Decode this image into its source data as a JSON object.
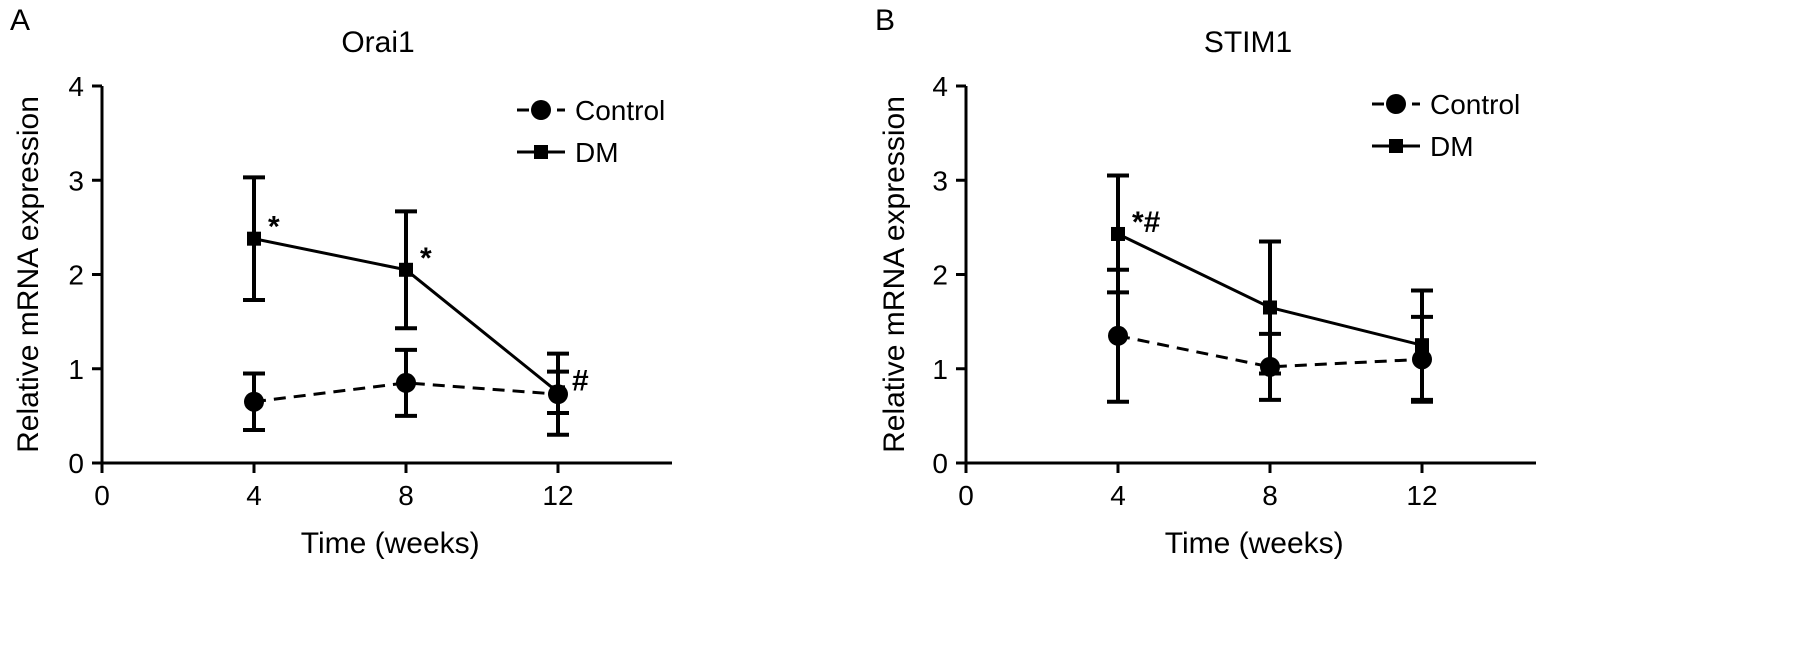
{
  "chart_data": [
    {
      "type": "line",
      "panel_label": "A",
      "title": "Orai1",
      "xlabel": "Time (weeks)",
      "ylabel": "Relative mRNA expression",
      "xlim": [
        0,
        15
      ],
      "ylim": [
        0,
        4
      ],
      "xticks": [
        0,
        4,
        8,
        12
      ],
      "yticks": [
        0,
        1,
        2,
        3,
        4
      ],
      "legend": "top-right",
      "grid": false,
      "series": [
        {
          "name": "Control",
          "marker": "circle",
          "line": "dashed",
          "x": [
            4,
            8,
            12
          ],
          "y": [
            0.65,
            0.85,
            0.73
          ],
          "err": [
            0.3,
            0.35,
            0.43
          ]
        },
        {
          "name": "DM",
          "marker": "square",
          "line": "solid",
          "x": [
            4,
            8,
            12
          ],
          "y": [
            2.38,
            2.05,
            0.75
          ],
          "err": [
            0.65,
            0.62,
            0.22
          ]
        }
      ],
      "annotations": [
        {
          "text": "*",
          "x": 4,
          "y": 2.38
        },
        {
          "text": "*",
          "x": 8,
          "y": 2.05
        },
        {
          "text": "#",
          "x": 12,
          "y": 0.75
        }
      ]
    },
    {
      "type": "line",
      "panel_label": "B",
      "title": "STIM1",
      "xlabel": "Time (weeks)",
      "ylabel": "Relative mRNA expression",
      "xlim": [
        0,
        15
      ],
      "ylim": [
        0,
        4
      ],
      "xticks": [
        0,
        4,
        8,
        12
      ],
      "yticks": [
        0,
        1,
        2,
        3,
        4
      ],
      "legend": "top-right",
      "grid": false,
      "series": [
        {
          "name": "Control",
          "marker": "circle",
          "line": "dashed",
          "x": [
            4,
            8,
            12
          ],
          "y": [
            1.35,
            1.02,
            1.1
          ],
          "err": [
            0.7,
            0.35,
            0.45
          ]
        },
        {
          "name": "DM",
          "marker": "square",
          "line": "solid",
          "x": [
            4,
            8,
            12
          ],
          "y": [
            2.43,
            1.65,
            1.25
          ],
          "err": [
            0.62,
            0.7,
            0.58
          ]
        }
      ],
      "annotations": [
        {
          "text": "*#",
          "x": 4,
          "y": 2.43
        }
      ]
    }
  ]
}
